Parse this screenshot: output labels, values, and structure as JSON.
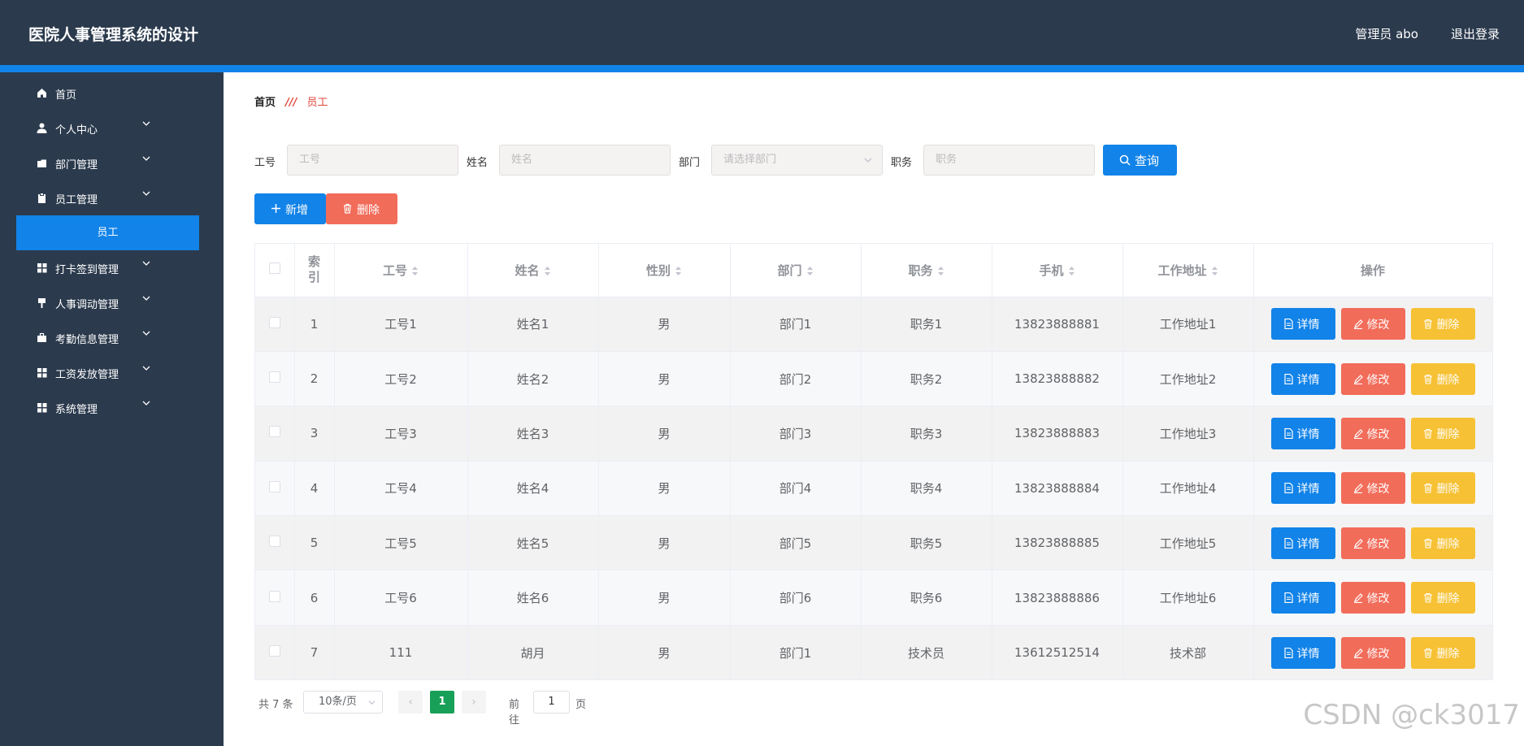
{
  "header": {
    "title": "医院人事管理系统的设计",
    "admin": "管理员 abo",
    "logout": "退出登录"
  },
  "colors": {
    "header_bg": "#2b3a4d",
    "accent": "#1283e8",
    "danger": "#f26c5a",
    "warning": "#f6c134",
    "pager_active": "#18a058"
  },
  "sidebar": {
    "items": [
      {
        "label": "首页",
        "icon": "home-icon",
        "has_sub": false
      },
      {
        "label": "个人中心",
        "icon": "user-icon",
        "has_sub": true
      },
      {
        "label": "部门管理",
        "icon": "folder-icon",
        "has_sub": true
      },
      {
        "label": "员工管理",
        "icon": "clipboard-icon",
        "has_sub": true
      },
      {
        "label": "打卡签到管理",
        "icon": "grid-icon",
        "has_sub": true
      },
      {
        "label": "人事调动管理",
        "icon": "pin-icon",
        "has_sub": true
      },
      {
        "label": "考勤信息管理",
        "icon": "briefcase-icon",
        "has_sub": true
      },
      {
        "label": "工资发放管理",
        "icon": "grid-icon",
        "has_sub": true
      },
      {
        "label": "系统管理",
        "icon": "grid-icon",
        "has_sub": true
      }
    ],
    "active_sub": "员工"
  },
  "breadcrumb": {
    "home": "首页",
    "current": "员工"
  },
  "search": {
    "gonghao_label": "工号",
    "gonghao_placeholder": "工号",
    "name_label": "姓名",
    "name_placeholder": "姓名",
    "dept_label": "部门",
    "dept_placeholder": "请选择部门",
    "position_label": "职务",
    "position_placeholder": "职务",
    "query_button": "查询"
  },
  "actions": {
    "add": "新增",
    "delete": "删除"
  },
  "table": {
    "headers": {
      "index": "索\n引",
      "gonghao": "工号",
      "name": "姓名",
      "gender": "性别",
      "dept": "部门",
      "position": "职务",
      "phone": "手机",
      "address": "工作地址",
      "ops": "操作"
    },
    "op_labels": {
      "detail": "详情",
      "edit": "修改",
      "remove": "删除"
    },
    "rows": [
      {
        "idx": "1",
        "gonghao": "工号1",
        "name": "姓名1",
        "gender": "男",
        "dept": "部门1",
        "position": "职务1",
        "phone": "13823888881",
        "address": "工作地址1"
      },
      {
        "idx": "2",
        "gonghao": "工号2",
        "name": "姓名2",
        "gender": "男",
        "dept": "部门2",
        "position": "职务2",
        "phone": "13823888882",
        "address": "工作地址2"
      },
      {
        "idx": "3",
        "gonghao": "工号3",
        "name": "姓名3",
        "gender": "男",
        "dept": "部门3",
        "position": "职务3",
        "phone": "13823888883",
        "address": "工作地址3"
      },
      {
        "idx": "4",
        "gonghao": "工号4",
        "name": "姓名4",
        "gender": "男",
        "dept": "部门4",
        "position": "职务4",
        "phone": "13823888884",
        "address": "工作地址4"
      },
      {
        "idx": "5",
        "gonghao": "工号5",
        "name": "姓名5",
        "gender": "男",
        "dept": "部门5",
        "position": "职务5",
        "phone": "13823888885",
        "address": "工作地址5"
      },
      {
        "idx": "6",
        "gonghao": "工号6",
        "name": "姓名6",
        "gender": "男",
        "dept": "部门6",
        "position": "职务6",
        "phone": "13823888886",
        "address": "工作地址6"
      },
      {
        "idx": "7",
        "gonghao": "111",
        "name": "胡月",
        "gender": "男",
        "dept": "部门1",
        "position": "技术员",
        "phone": "13612512514",
        "address": "技术部"
      }
    ]
  },
  "pagination": {
    "total": "共 7 条",
    "page_size": "10条/页",
    "current_page": "1",
    "goto_label": "前往",
    "goto_value": "1",
    "page_unit": "页"
  },
  "watermark": "CSDN @ck3017"
}
